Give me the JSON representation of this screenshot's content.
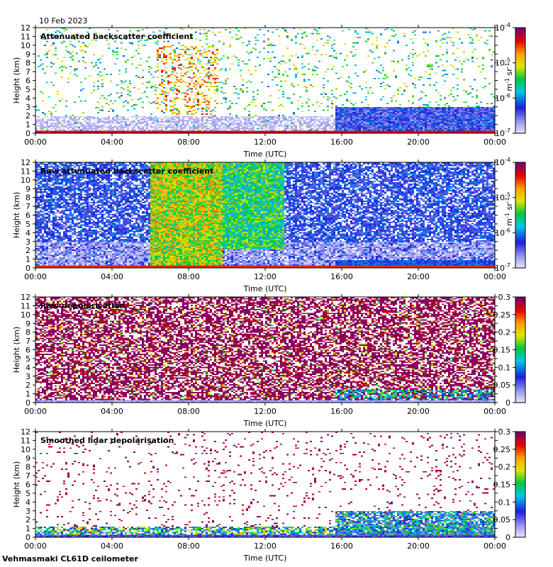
{
  "date": "10 Feb 2023",
  "footer": "Vehmasmaki CL61D ceilometer",
  "chart_data": [
    {
      "type": "heatmap",
      "title": "Attenuated backscatter coefficient",
      "xlabel": "Time (UTC)",
      "ylabel": "Height (km)",
      "xticks": [
        "00:00",
        "04:00",
        "08:00",
        "12:00",
        "16:00",
        "20:00",
        "00:00"
      ],
      "xlim_hours": [
        0,
        24
      ],
      "ylim": [
        0,
        12
      ],
      "yticks": [
        0,
        1,
        2,
        3,
        4,
        5,
        6,
        7,
        8,
        9,
        10,
        11,
        12
      ],
      "colorbar": {
        "scale": "log",
        "range": [
          1e-07,
          0.0001
        ],
        "ticks": [
          {
            "base": "10",
            "exp": "-4",
            "value": 0.0001
          },
          {
            "base": "10",
            "exp": "-5",
            "value": 1e-05
          },
          {
            "base": "10",
            "exp": "-6",
            "value": 1e-06
          },
          {
            "base": "10",
            "exp": "-7",
            "value": 1e-07
          }
        ],
        "units": {
          "a": "m",
          "a_exp": "-1",
          "b": "sr",
          "b_exp": "-1"
        }
      },
      "cbar_ticks": [
        "10",
        "10",
        "10",
        "10"
      ],
      "unit_a": "m",
      "unit_b": "sr",
      "pattern": "sparse"
    },
    {
      "type": "heatmap",
      "title": "Raw attenuated backscatter coefficient",
      "xlabel": "Time (UTC)",
      "ylabel": "Height (km)",
      "xticks": [
        "00:00",
        "04:00",
        "08:00",
        "12:00",
        "16:00",
        "20:00",
        "00:00"
      ],
      "xlim_hours": [
        0,
        24
      ],
      "ylim": [
        0,
        12
      ],
      "yticks": [
        0,
        1,
        2,
        3,
        4,
        5,
        6,
        7,
        8,
        9,
        10,
        11,
        12
      ],
      "colorbar": {
        "scale": "log",
        "range": [
          1e-07,
          0.0001
        ],
        "ticks": [
          {
            "base": "10",
            "exp": "-4",
            "value": 0.0001
          },
          {
            "base": "10",
            "exp": "-5",
            "value": 1e-05
          },
          {
            "base": "10",
            "exp": "-6",
            "value": 1e-06
          },
          {
            "base": "10",
            "exp": "-7",
            "value": 1e-07
          }
        ],
        "units": {
          "a": "m",
          "a_exp": "-1",
          "b": "sr",
          "b_exp": "-1"
        }
      },
      "pattern": "raw"
    },
    {
      "type": "heatmap",
      "title": "Raw depolarisation",
      "xlabel": "Time (UTC)",
      "ylabel": "Height (km)",
      "xticks": [
        "00:00",
        "04:00",
        "08:00",
        "12:00",
        "16:00",
        "20:00",
        "00:00"
      ],
      "xlim_hours": [
        0,
        24
      ],
      "ylim": [
        0,
        12
      ],
      "yticks": [
        0,
        1,
        2,
        3,
        4,
        5,
        6,
        7,
        8,
        9,
        10,
        11,
        12
      ],
      "colorbar": {
        "scale": "linear",
        "range": [
          0,
          0.3
        ],
        "ticks": [
          {
            "label": "0.3",
            "value": 0.3
          },
          {
            "label": "0.25",
            "value": 0.25
          },
          {
            "label": "0.2",
            "value": 0.2
          },
          {
            "label": "0.15",
            "value": 0.15
          },
          {
            "label": "0.1",
            "value": 0.1
          },
          {
            "label": "0.05",
            "value": 0.05
          },
          {
            "label": "0",
            "value": 0
          }
        ]
      },
      "pattern": "depol"
    },
    {
      "type": "heatmap",
      "title": "Smoothed lidar depolarisation",
      "xlabel": "Time (UTC)",
      "ylabel": "Height (km)",
      "xticks": [
        "00:00",
        "04:00",
        "08:00",
        "12:00",
        "16:00",
        "20:00",
        "00:00"
      ],
      "xlim_hours": [
        0,
        24
      ],
      "ylim": [
        0,
        12
      ],
      "yticks": [
        0,
        1,
        2,
        3,
        4,
        5,
        6,
        7,
        8,
        9,
        10,
        11,
        12
      ],
      "colorbar": {
        "scale": "linear",
        "range": [
          0,
          0.3
        ],
        "ticks": [
          {
            "label": "0.3",
            "value": 0.3
          },
          {
            "label": "0.25",
            "value": 0.25
          },
          {
            "label": "0.2",
            "value": 0.2
          },
          {
            "label": "0.15",
            "value": 0.15
          },
          {
            "label": "0.1",
            "value": 0.1
          },
          {
            "label": "0.05",
            "value": 0.05
          },
          {
            "label": "0",
            "value": 0
          }
        ]
      },
      "pattern": "smooth"
    }
  ]
}
